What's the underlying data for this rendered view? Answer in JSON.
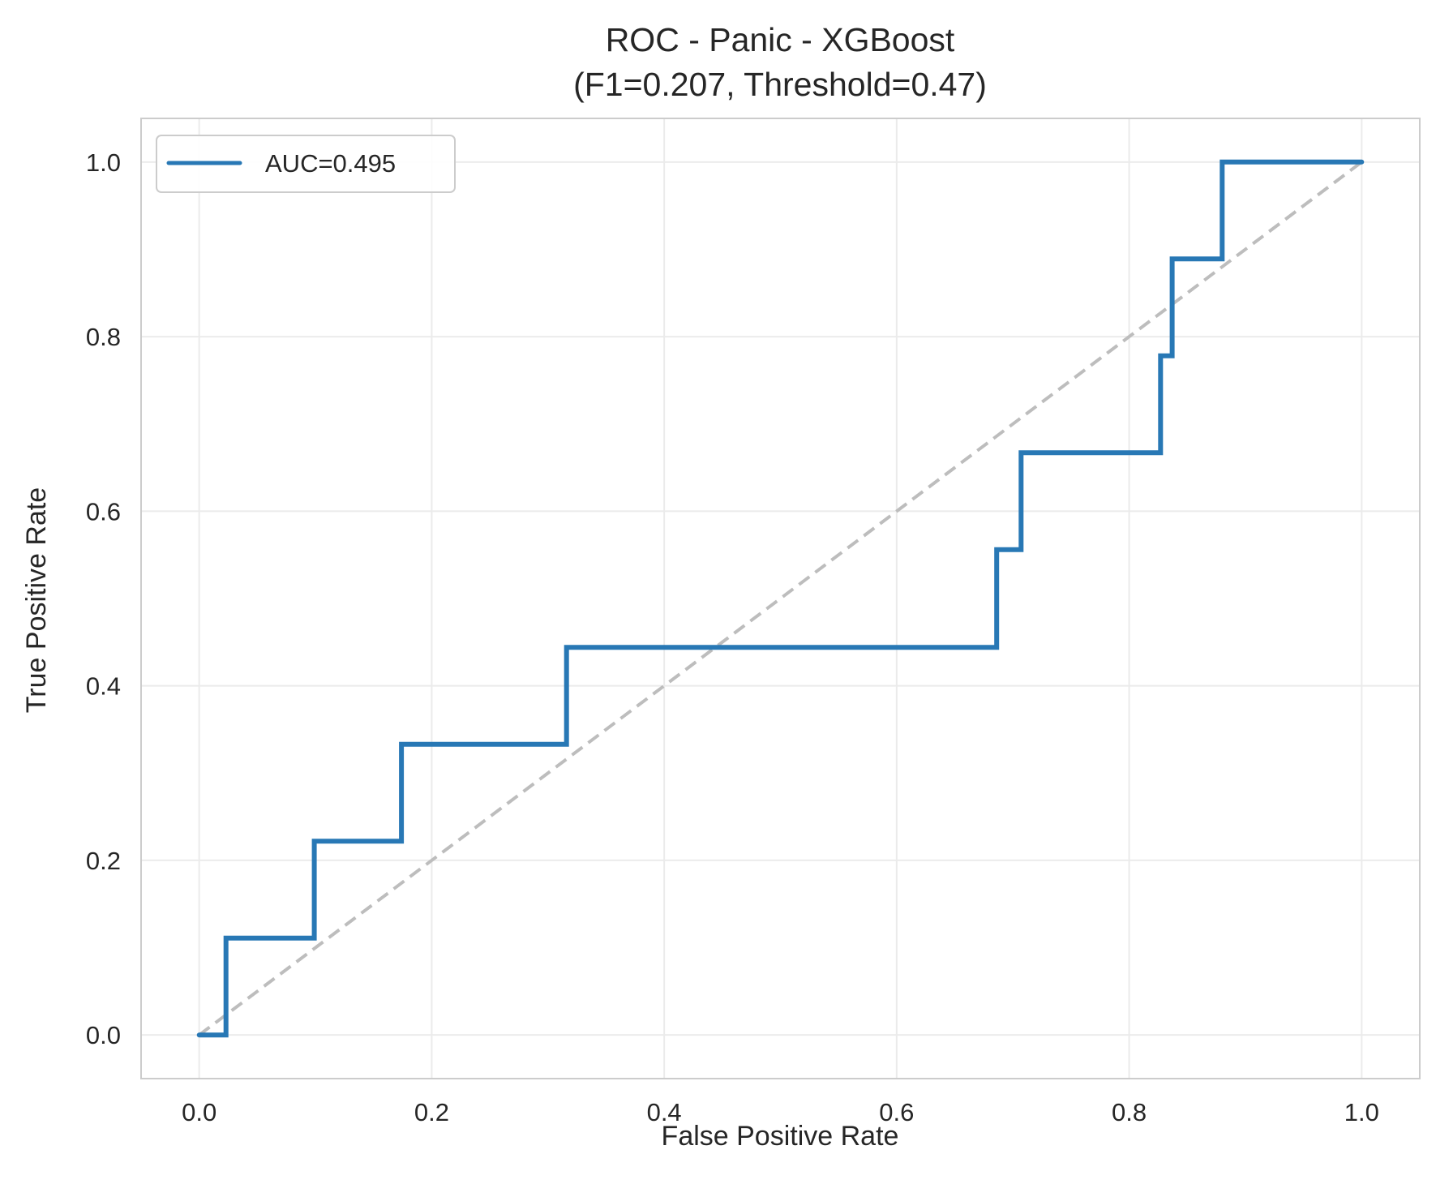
{
  "chart_data": {
    "type": "line",
    "title": "ROC - Panic - XGBoost",
    "subtitle": "(F1=0.207, Threshold=0.47)",
    "xlabel": "False Positive Rate",
    "ylabel": "True Positive Rate",
    "xlim": [
      -0.05,
      1.05
    ],
    "ylim": [
      -0.05,
      1.05
    ],
    "xticks": [
      0.0,
      0.2,
      0.4,
      0.6,
      0.8,
      1.0
    ],
    "yticks": [
      0.0,
      0.2,
      0.4,
      0.6,
      0.8,
      1.0
    ],
    "xtick_labels": [
      "0.0",
      "0.2",
      "0.4",
      "0.6",
      "0.8",
      "1.0"
    ],
    "ytick_labels": [
      "0.0",
      "0.2",
      "0.4",
      "0.6",
      "0.8",
      "1.0"
    ],
    "grid": true,
    "legend_position": "top-left",
    "series": [
      {
        "name": "AUC=0.495",
        "color": "#2878b5",
        "x": [
          0.0,
          0.023,
          0.023,
          0.099,
          0.099,
          0.174,
          0.174,
          0.316,
          0.316,
          0.686,
          0.686,
          0.707,
          0.707,
          0.827,
          0.827,
          0.837,
          0.837,
          0.88,
          0.88,
          1.0
        ],
        "y": [
          0.0,
          0.0,
          0.111,
          0.111,
          0.222,
          0.222,
          0.333,
          0.333,
          0.444,
          0.444,
          0.556,
          0.556,
          0.667,
          0.667,
          0.778,
          0.778,
          0.889,
          0.889,
          1.0,
          1.0
        ]
      }
    ],
    "reference_line": {
      "x": [
        0,
        1
      ],
      "y": [
        0,
        1
      ],
      "color": "#bdbdbd",
      "style": "dashed"
    }
  }
}
